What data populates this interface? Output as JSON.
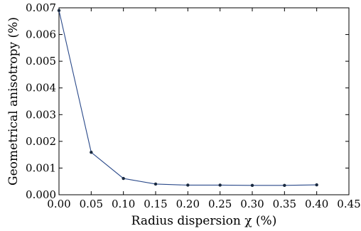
{
  "chart_data": {
    "type": "line",
    "title": "",
    "xlabel": "Radius dispersion χ (%)",
    "ylabel": "Geometrical anisotropy (%)",
    "xlim": [
      0.0,
      0.45
    ],
    "ylim": [
      0.0,
      0.007
    ],
    "xticks": [
      "0.00",
      "0.05",
      "0.10",
      "0.15",
      "0.20",
      "0.25",
      "0.30",
      "0.35",
      "0.40",
      "0.45"
    ],
    "yticks": [
      "0.000",
      "0.001",
      "0.002",
      "0.003",
      "0.004",
      "0.005",
      "0.006",
      "0.007"
    ],
    "grid": false,
    "series": [
      {
        "color": "#2b4a8a",
        "marker_color": "#1a2a40",
        "x": [
          0.0,
          0.05,
          0.1,
          0.15,
          0.2,
          0.25,
          0.3,
          0.35,
          0.4
        ],
        "y": [
          0.0069,
          0.00159,
          0.00061,
          0.0004,
          0.00036,
          0.00036,
          0.00035,
          0.00035,
          0.00037
        ]
      }
    ]
  }
}
